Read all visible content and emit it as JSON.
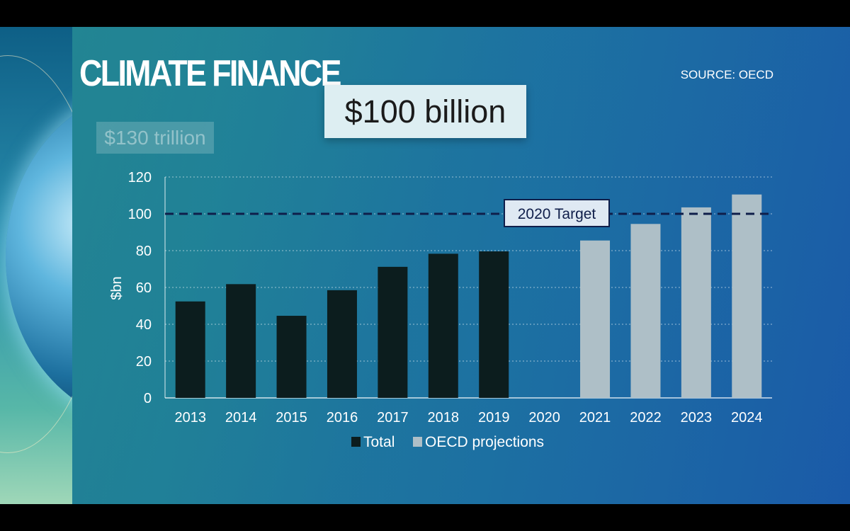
{
  "title": "CLIMATE FINANCE",
  "source": "SOURCE: OECD",
  "highlight_box": "$100 billion",
  "ghost_box": "$130 trillion",
  "colors": {
    "total_bar": "#0c1d1e",
    "projection_bar": "#aebfc7",
    "target_line": "#0f1e4a"
  },
  "chart_data": {
    "type": "bar",
    "categories": [
      "2013",
      "2014",
      "2015",
      "2016",
      "2017",
      "2018",
      "2019",
      "2020",
      "2021",
      "2022",
      "2023",
      "2024"
    ],
    "series": [
      {
        "name": "Total",
        "values": [
          52.4,
          61.8,
          44.6,
          58.5,
          71.2,
          78.3,
          79.6,
          null,
          null,
          null,
          null,
          null
        ]
      },
      {
        "name": "OECD projections",
        "values": [
          null,
          null,
          null,
          null,
          null,
          null,
          null,
          null,
          85.5,
          94.5,
          103.5,
          110.5
        ]
      }
    ],
    "yticks": [
      "0",
      "20",
      "40",
      "60",
      "80",
      "100",
      "120"
    ],
    "ylim": [
      0,
      120
    ],
    "ylabel": "$bn",
    "xlabel": "",
    "grid": "dotted horizontal",
    "legend_position": "bottom",
    "annotations": [
      {
        "type": "hline",
        "y": 100,
        "label": "2020 Target",
        "style": "dashed"
      }
    ]
  }
}
